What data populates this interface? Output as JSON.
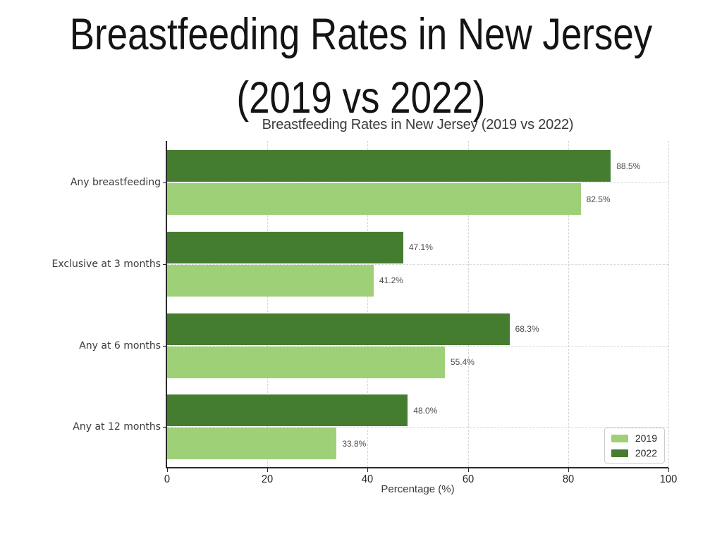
{
  "slide": {
    "title_line1": "Breastfeeding Rates in New Jersey",
    "title_line2": "(2019 vs 2022)"
  },
  "chart_data": {
    "type": "bar",
    "orientation": "horizontal",
    "title": "Breastfeeding Rates in New Jersey (2019 vs 2022)",
    "xlabel": "Percentage (%)",
    "ylabel": "",
    "xlim": [
      0,
      100
    ],
    "xticks": [
      0,
      20,
      40,
      60,
      80,
      100
    ],
    "grid": true,
    "legend_position": "lower right",
    "categories": [
      "Any breastfeeding",
      "Exclusive at 3 months",
      "Any at 6 months",
      "Any at 12 months"
    ],
    "bar_order_top_to_bottom": [
      "2022",
      "2019"
    ],
    "series": [
      {
        "name": "2019",
        "color": "#9ed177",
        "values": [
          82.5,
          41.2,
          55.4,
          33.8
        ],
        "labels": [
          "82.5%",
          "41.2%",
          "55.4%",
          "33.8%"
        ]
      },
      {
        "name": "2022",
        "color": "#457d30",
        "values": [
          88.5,
          47.1,
          68.3,
          48.0
        ],
        "labels": [
          "88.5%",
          "47.1%",
          "68.3%",
          "48.0%"
        ]
      }
    ]
  }
}
